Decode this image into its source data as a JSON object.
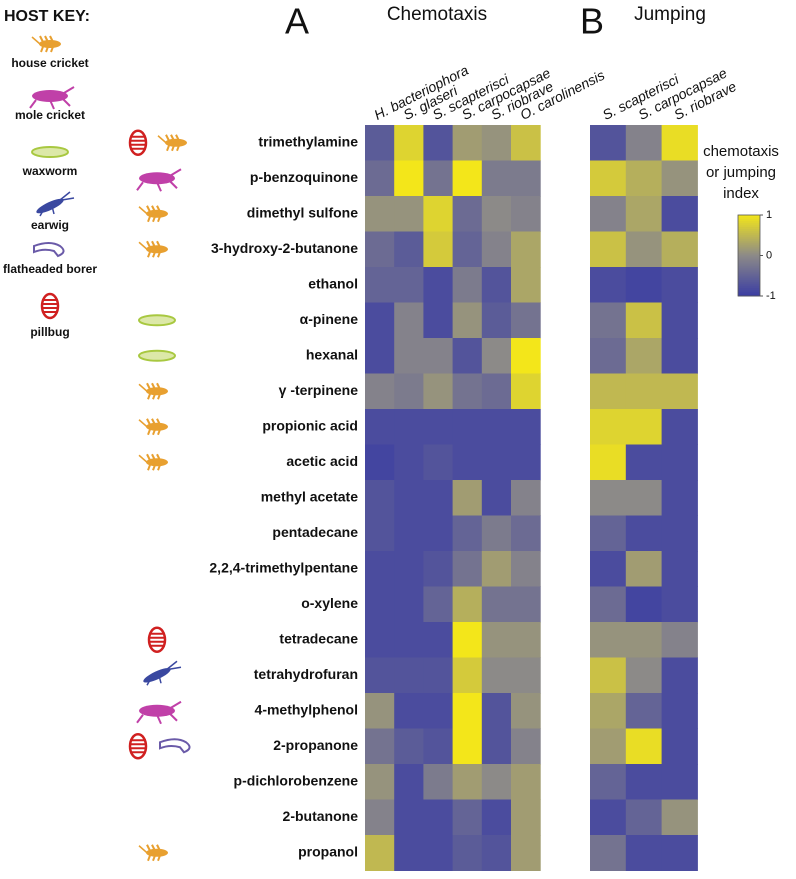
{
  "host_key": {
    "title": "HOST KEY:",
    "items": [
      {
        "name": "house cricket",
        "color": "#e8a030"
      },
      {
        "name": "mole cricket",
        "color": "#c040a8"
      },
      {
        "name": "waxworm",
        "color": "#a8c840"
      },
      {
        "name": "earwig",
        "color": "#3a48a0"
      },
      {
        "name": "flatheaded borer",
        "color": "#6a5aa8"
      },
      {
        "name": "pillbug",
        "color": "#d02020"
      }
    ]
  },
  "chart_data": [
    {
      "type": "heatmap",
      "label": "A",
      "title": "Chemotaxis",
      "columns": [
        "H. bacteriophora",
        "S. glaseri",
        "S. scapterisci",
        "S. carpocapsae",
        "S. riobrave",
        "O. carolinensis"
      ],
      "rows": [
        "trimethylamine",
        "p-benzoquinone",
        "dimethyl sulfone",
        "3-hydroxy-2-butanone",
        "ethanol",
        "α-pinene",
        "hexanal",
        "γ -terpinene",
        "propionic acid",
        "acetic acid",
        "methyl acetate",
        "pentadecane",
        "2,2,4-trimethylpentane",
        "o-xylene",
        "tetradecane",
        "tetrahydrofuran",
        "4-methylphenol",
        "2-propanone",
        "p-dichlorobenzene",
        "2-butanone",
        "propanol"
      ],
      "values": [
        [
          -0.6,
          0.8,
          -0.7,
          0.2,
          0.1,
          0.6
        ],
        [
          -0.4,
          1,
          -0.3,
          1,
          -0.2,
          -0.2
        ],
        [
          0.1,
          0.1,
          0.8,
          -0.4,
          0,
          -0.1
        ],
        [
          -0.4,
          -0.6,
          0.7,
          -0.5,
          -0.1,
          0.3
        ],
        [
          -0.5,
          -0.5,
          -0.8,
          -0.2,
          -0.7,
          0.3
        ],
        [
          -0.8,
          -0.1,
          -0.8,
          0.1,
          -0.6,
          -0.3
        ],
        [
          -0.8,
          -0.1,
          -0.1,
          -0.7,
          0,
          1
        ],
        [
          -0.1,
          -0.2,
          0.1,
          -0.3,
          -0.4,
          0.8
        ],
        [
          -0.8,
          -0.8,
          -0.8,
          -0.8,
          -0.8,
          -0.8
        ],
        [
          -0.9,
          -0.8,
          -0.7,
          -0.8,
          -0.8,
          -0.8
        ],
        [
          -0.7,
          -0.8,
          -0.8,
          0.2,
          -0.8,
          -0.1
        ],
        [
          -0.7,
          -0.8,
          -0.8,
          -0.5,
          -0.2,
          -0.4
        ],
        [
          -0.8,
          -0.8,
          -0.7,
          -0.3,
          0.2,
          -0.1
        ],
        [
          -0.8,
          -0.8,
          -0.5,
          0.4,
          -0.3,
          -0.3
        ],
        [
          -0.8,
          -0.8,
          -0.8,
          1,
          0.1,
          0.1
        ],
        [
          -0.7,
          -0.7,
          -0.7,
          0.7,
          0,
          0
        ],
        [
          0.1,
          -0.8,
          -0.8,
          1,
          -0.7,
          0.1
        ],
        [
          -0.3,
          -0.6,
          -0.7,
          1,
          -0.7,
          -0.1
        ],
        [
          0.1,
          -0.8,
          -0.2,
          0.2,
          0,
          0.2
        ],
        [
          -0.1,
          -0.8,
          -0.8,
          -0.5,
          -0.8,
          0.2
        ],
        [
          0.5,
          -0.8,
          -0.8,
          -0.6,
          -0.7,
          0.2
        ]
      ]
    },
    {
      "type": "heatmap",
      "label": "B",
      "title": "Jumping",
      "columns": [
        "S. scapterisci",
        "S. carpocapsae",
        "S. riobrave"
      ],
      "values": [
        [
          -0.7,
          -0.1,
          0.9
        ],
        [
          0.7,
          0.4,
          0.1
        ],
        [
          -0.1,
          0.3,
          -0.8
        ],
        [
          0.6,
          0.1,
          0.4
        ],
        [
          -0.8,
          -0.9,
          -0.8
        ],
        [
          -0.3,
          0.6,
          -0.8
        ],
        [
          -0.4,
          0.3,
          -0.8
        ],
        [
          0.5,
          0.5,
          0.5
        ],
        [
          0.8,
          0.8,
          -0.8
        ],
        [
          0.9,
          -0.8,
          -0.8
        ],
        [
          0,
          0,
          -0.8
        ],
        [
          -0.5,
          -0.8,
          -0.8
        ],
        [
          -0.8,
          0.2,
          -0.8
        ],
        [
          -0.4,
          -0.9,
          -0.8
        ],
        [
          0.1,
          0.1,
          -0.1
        ],
        [
          0.6,
          0,
          -0.8
        ],
        [
          0.3,
          -0.5,
          -0.8
        ],
        [
          0.2,
          0.9,
          -0.8
        ],
        [
          -0.5,
          -0.8,
          -0.8
        ],
        [
          -0.8,
          -0.5,
          0.1
        ],
        [
          -0.3,
          -0.8,
          -0.8
        ]
      ],
      "colorbar": {
        "title": [
          "chemotaxis",
          "or jumping",
          "index"
        ],
        "lim": [
          -1,
          1
        ],
        "ticks": [
          1,
          0,
          -1
        ],
        "colors": [
          "#3b3da3",
          "#8c8a88",
          "#f3e61a"
        ]
      }
    }
  ]
}
